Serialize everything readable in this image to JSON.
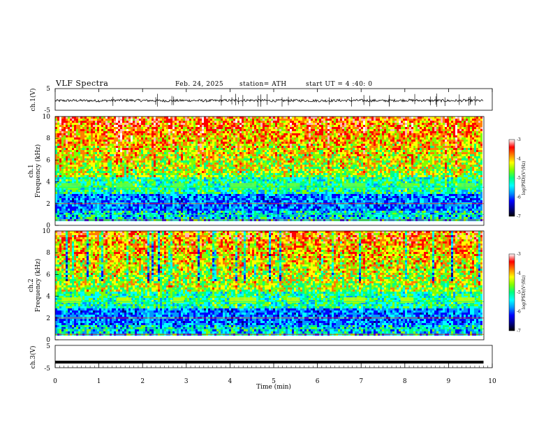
{
  "header": {
    "title": "VLF  Spectra",
    "date": "Feb. 24, 2025",
    "station": "station= ATH",
    "start_ut": "start  UT  =   4  :40: 0"
  },
  "chart_data": [
    {
      "type": "line",
      "panel": "ch1-waveform",
      "ylabel": "ch.1(V)",
      "yticks": [
        "5",
        "-5"
      ],
      "ylim": [
        -5,
        5
      ],
      "x": [
        0,
        0.5,
        1,
        1.5,
        2,
        2.5,
        3,
        3.5,
        4,
        4.5,
        5,
        5.5,
        6,
        6.5,
        7,
        7.5,
        8,
        8.5,
        9,
        9.5,
        9.8
      ],
      "y": [
        -0.6,
        -0.5,
        -0.6,
        -0.4,
        -0.5,
        -0.6,
        -0.5,
        -0.6,
        -0.5,
        -0.4,
        -0.6,
        -0.5,
        -0.6,
        -0.5,
        -0.5,
        -0.6,
        -0.4,
        -0.5,
        -0.6,
        -0.5,
        -0.6
      ],
      "color": "#000000"
    },
    {
      "type": "heatmap",
      "panel": "ch1-spectrogram",
      "ylabel_line1": "ch.1",
      "ylabel_line2": "Frequency (kHz)",
      "yticks": [
        "0",
        "2",
        "4",
        "6",
        "8",
        "10"
      ],
      "ylim": [
        0,
        10
      ],
      "colorbar": {
        "label": "log(PSD)(V²/Hz)",
        "ticks": [
          "-3",
          "-4",
          "-5",
          "-6",
          "-7"
        ],
        "range": [
          -7,
          -3
        ]
      }
    },
    {
      "type": "heatmap",
      "panel": "ch2-spectrogram",
      "ylabel_line1": "ch.2",
      "ylabel_line2": "Frequency (kHz)",
      "yticks": [
        "0",
        "2",
        "4",
        "6",
        "8",
        "10"
      ],
      "ylim": [
        0,
        10
      ],
      "colorbar": {
        "label": "log(PSD)(V²/Hz)",
        "ticks": [
          "-3",
          "-4",
          "-5",
          "-6",
          "-7"
        ],
        "range": [
          -7,
          -3
        ]
      }
    },
    {
      "type": "line",
      "panel": "ch3-waveform",
      "ylabel": "ch.3(V)",
      "yticks": [
        "5",
        "-5"
      ],
      "ylim": [
        -5,
        5
      ],
      "x": [
        0,
        9.8
      ],
      "y": [
        -2.5,
        -2.5
      ],
      "color": "#000000"
    }
  ],
  "x_axis": {
    "label": "Time  (min)",
    "ticks": [
      "0",
      "1",
      "2",
      "3",
      "4",
      "5",
      "6",
      "7",
      "8",
      "9",
      "10"
    ],
    "xlim": [
      0,
      10
    ]
  },
  "colormap": [
    "#000000",
    "#00008b",
    "#0000ff",
    "#0096ff",
    "#00ffff",
    "#00ff80",
    "#80ff00",
    "#ffff00",
    "#ff8000",
    "#ff0000",
    "#ffb4b4",
    "#ffffff"
  ]
}
